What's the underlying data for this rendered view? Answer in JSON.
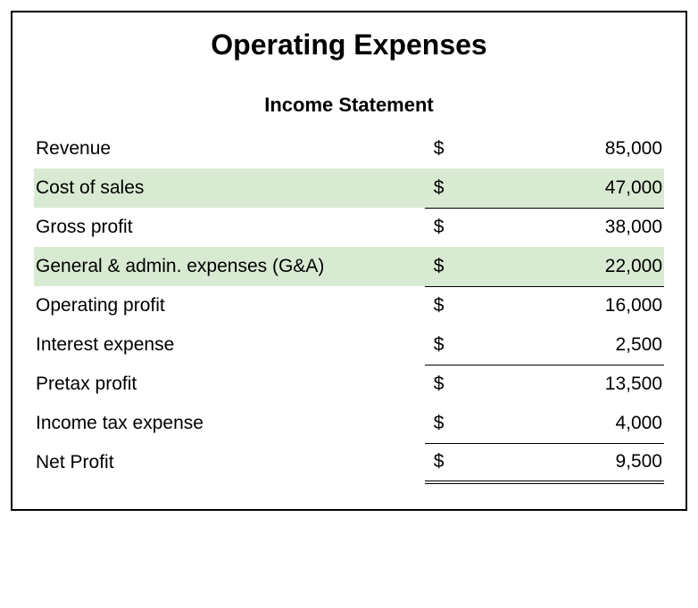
{
  "title": "Operating Expenses",
  "subtitle": "Income Statement",
  "currency_symbol": "$",
  "highlight_color": "#d9ead3",
  "background_color": "#ffffff",
  "border_color": "#000000",
  "text_color": "#000000",
  "title_fontsize": 32,
  "subtitle_fontsize": 22,
  "row_fontsize": 21,
  "rows": [
    {
      "label": "Revenue",
      "value": "85,000",
      "highlight": false,
      "underline": false,
      "double_underline": false
    },
    {
      "label": "Cost of sales",
      "value": "47,000",
      "highlight": true,
      "underline": true,
      "double_underline": false
    },
    {
      "label": "Gross profit",
      "value": "38,000",
      "highlight": false,
      "underline": false,
      "double_underline": false
    },
    {
      "label": "General & admin. expenses (G&A)",
      "value": "22,000",
      "highlight": true,
      "underline": true,
      "double_underline": false
    },
    {
      "label": "Operating profit",
      "value": "16,000",
      "highlight": false,
      "underline": false,
      "double_underline": false
    },
    {
      "label": "Interest expense",
      "value": "2,500",
      "highlight": false,
      "underline": true,
      "double_underline": false
    },
    {
      "label": "Pretax profit",
      "value": "13,500",
      "highlight": false,
      "underline": false,
      "double_underline": false
    },
    {
      "label": "Income tax expense",
      "value": "4,000",
      "highlight": false,
      "underline": true,
      "double_underline": false
    },
    {
      "label": "Net Profit",
      "value": "9,500",
      "highlight": false,
      "underline": false,
      "double_underline": true
    }
  ]
}
